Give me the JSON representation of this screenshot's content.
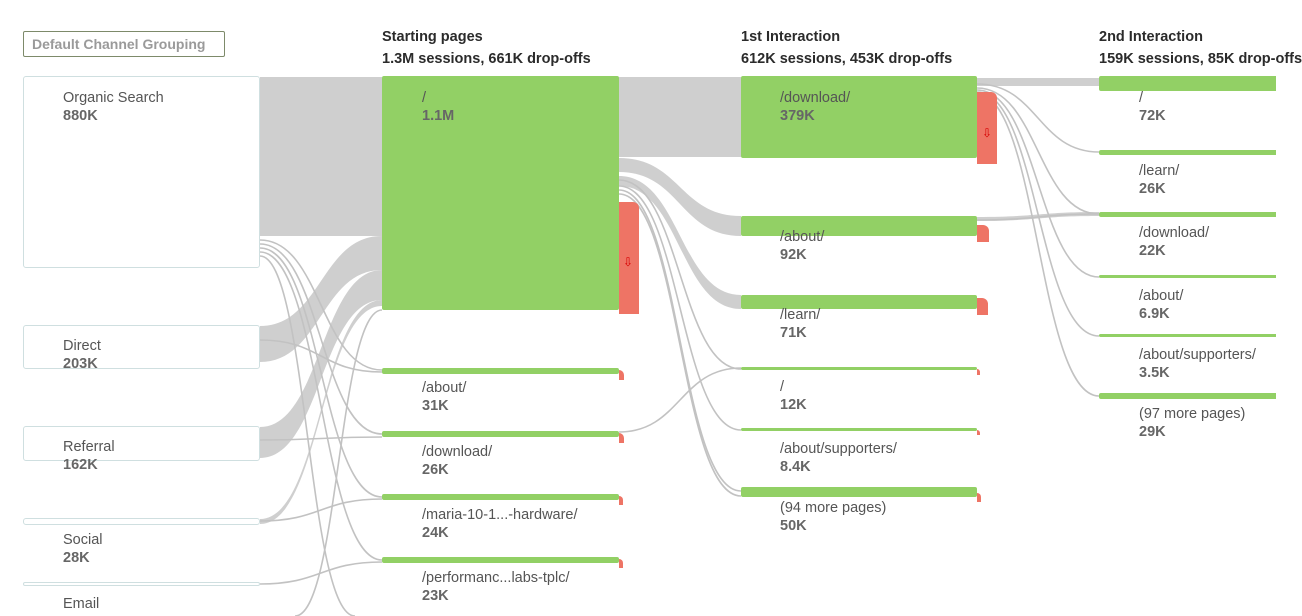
{
  "dimension_selector": {
    "label": "Default Channel Grouping"
  },
  "columns": [
    {
      "title": "Starting pages",
      "stats": "1.3M sessions, 661K drop-offs"
    },
    {
      "title": "1st Interaction",
      "stats": "612K sessions, 453K drop-offs"
    },
    {
      "title": "2nd Interaction",
      "stats": "159K sessions, 85K drop-offs"
    }
  ],
  "sources": [
    {
      "name": "Organic Search",
      "value": "880K"
    },
    {
      "name": "Direct",
      "value": "203K"
    },
    {
      "name": "Referral",
      "value": "162K"
    },
    {
      "name": "Social",
      "value": "28K"
    },
    {
      "name": "Email",
      "value": ""
    }
  ],
  "starting_pages": [
    {
      "name": "/",
      "value": "1.1M"
    },
    {
      "name": "/about/",
      "value": "31K"
    },
    {
      "name": "/download/",
      "value": "26K"
    },
    {
      "name": "/maria-10-1...-hardware/",
      "value": "24K"
    },
    {
      "name": "/performanc...labs-tplc/",
      "value": "23K"
    }
  ],
  "first_interaction": [
    {
      "name": "/download/",
      "value": "379K"
    },
    {
      "name": "/about/",
      "value": "92K"
    },
    {
      "name": "/learn/",
      "value": "71K"
    },
    {
      "name": "/",
      "value": "12K"
    },
    {
      "name": "/about/supporters/",
      "value": "8.4K"
    },
    {
      "name": "(94 more pages)",
      "value": "50K"
    }
  ],
  "second_interaction": [
    {
      "name": "/",
      "value": "72K"
    },
    {
      "name": "/learn/",
      "value": "26K"
    },
    {
      "name": "/download/",
      "value": "22K"
    },
    {
      "name": "/about/",
      "value": "6.9K"
    },
    {
      "name": "/about/supporters/",
      "value": "3.5K"
    },
    {
      "name": "(97 more pages)",
      "value": "29K"
    }
  ],
  "colors": {
    "node": "#92d065",
    "dropoff": "#ee7465",
    "flow": "#cccccc",
    "source_border": "#cfdfe0"
  }
}
